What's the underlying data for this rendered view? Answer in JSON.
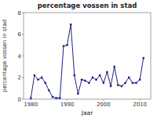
{
  "chart_data": {
    "type": "line",
    "title": "percentage vossen in stad",
    "xlabel": "Jaar",
    "ylabel": "percentage vossen in stad",
    "x": [
      1980,
      1981,
      1982,
      1983,
      1984,
      1985,
      1986,
      1987,
      1988,
      1989,
      1990,
      1991,
      1992,
      1993,
      1994,
      1995,
      1996,
      1997,
      1998,
      1999,
      2000,
      2001,
      2002,
      2003,
      2004,
      2005,
      2006,
      2007,
      2008,
      2009,
      2010,
      2011
    ],
    "values": [
      0.1,
      2.2,
      1.8,
      2.0,
      1.5,
      0.8,
      0.2,
      0.1,
      0.1,
      4.9,
      5.0,
      6.9,
      2.2,
      0.5,
      1.8,
      1.7,
      1.5,
      2.0,
      1.8,
      2.2,
      1.5,
      2.5,
      1.2,
      3.0,
      1.3,
      1.2,
      1.5,
      2.0,
      1.5,
      1.5,
      1.8,
      3.8
    ],
    "xlim": [
      1978,
      2013
    ],
    "ylim": [
      0,
      8
    ],
    "xticks": [
      1980,
      1990,
      2000,
      2010
    ],
    "yticks": [
      0,
      2,
      4,
      6,
      8
    ],
    "color": "#1a237e",
    "marker": "square",
    "grid": false
  }
}
